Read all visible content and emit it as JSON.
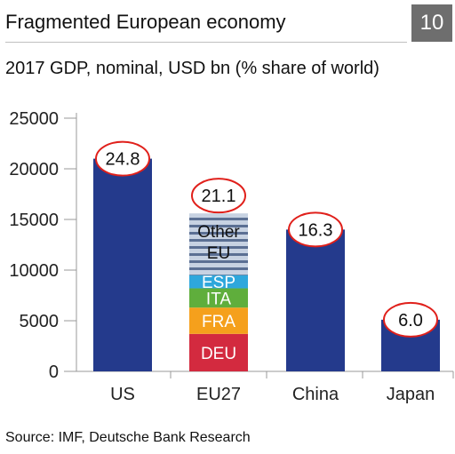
{
  "header": {
    "title": "Fragmented European economy",
    "page_number": "10",
    "subtitle": "2017 GDP, nominal, USD bn (% share of world)"
  },
  "footer": {
    "source": "Source: IMF, Deutsche Bank Research"
  },
  "colors": {
    "bar": "#243a8c",
    "deu": "#d32a3f",
    "fra": "#f5a01c",
    "ita": "#5fae3c",
    "esp": "#2ea7dc",
    "other_eu_light": "#c7d2e2",
    "other_eu_dark": "#5b6f93",
    "bubble_stroke": "#e0201b"
  },
  "chart_data": {
    "type": "bar",
    "stacked": true,
    "categories": [
      "US",
      "EU27",
      "China",
      "Japan"
    ],
    "ylim": [
      0,
      25000
    ],
    "yticks": [
      0,
      5000,
      10000,
      15000,
      20000,
      25000
    ],
    "grid": false,
    "bars": [
      {
        "category": "US",
        "value": 21000,
        "share_label": "24.8"
      },
      {
        "category": "EU27",
        "share_label": "21.1",
        "segments": [
          {
            "name": "DEU",
            "value": 3700
          },
          {
            "name": "FRA",
            "value": 2600
          },
          {
            "name": "ITA",
            "value": 1900
          },
          {
            "name": "ESP",
            "value": 1300
          },
          {
            "name": "Other EU",
            "value": 6100
          }
        ]
      },
      {
        "category": "China",
        "value": 14000,
        "share_label": "16.3"
      },
      {
        "category": "Japan",
        "value": 5100,
        "share_label": "6.0"
      }
    ]
  }
}
